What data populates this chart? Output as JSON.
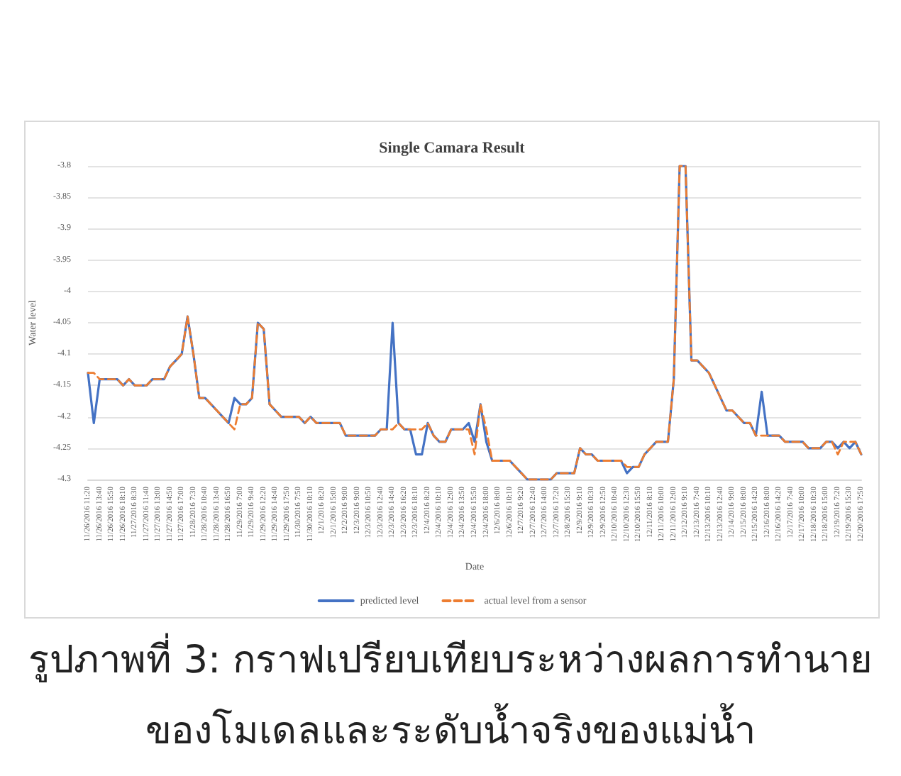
{
  "chart_data": {
    "type": "line",
    "title": "Single Camara Result",
    "xlabel": "Date",
    "ylabel": "Water level",
    "annotations": [
      "รูปภาพที่ 3: กราฟเปรียบเทียบระหว่างผลการทำนายของโมเดลและระดับน้ำจริงของแม่น้ำ"
    ],
    "categories": [
      "11/26/2016 11:20",
      null,
      "11/26/2016 13:40",
      null,
      "11/26/2016 15:50",
      null,
      "11/26/2016 18:10",
      null,
      "11/27/2016 8:30",
      null,
      "11/27/2016 11:40",
      null,
      "11/27/2016 13:00",
      null,
      "11/27/2016 14:50",
      null,
      "11/27/2016 17:00",
      null,
      "11/28/2016 7:30",
      null,
      "11/28/2016 10:40",
      null,
      "11/28/2016 13:40",
      null,
      "11/28/2016 16:50",
      null,
      "11/29/2016 7:00",
      null,
      "11/29/2016 9:40",
      null,
      "11/29/2016 12:20",
      null,
      "11/29/2016 14:40",
      null,
      "11/29/2016 17:50",
      null,
      "11/30/2016 7:50",
      null,
      "11/30/2016 10:10",
      null,
      "12/1/2016 8:20",
      null,
      "12/1/2016 15:00",
      null,
      "12/2/2016 9:00",
      null,
      "12/3/2016 9:00",
      null,
      "12/3/2016 10:50",
      null,
      "12/3/2016 12:40",
      null,
      "12/3/2016 14:40",
      null,
      "12/3/2016 16:20",
      null,
      "12/3/2016 18:10",
      null,
      "12/4/2016 8:20",
      null,
      "12/4/2016 10:10",
      null,
      "12/4/2016 12:00",
      null,
      "12/4/2016 13:50",
      null,
      "12/4/2016 15:50",
      null,
      "12/4/2016 18:00",
      null,
      "12/6/2016 8:00",
      null,
      "12/6/2016 10:10",
      null,
      "12/7/2016 9:20",
      null,
      "12/7/2016 12:40",
      null,
      "12/7/2016 14:00",
      null,
      "12/7/2016 17:20",
      null,
      "12/8/2016 15:30",
      null,
      "12/9/2016 9:10",
      null,
      "12/9/2016 10:30",
      null,
      "12/9/2016 12:50",
      null,
      "12/10/2016 10:40",
      null,
      "12/10/2016 12:30",
      null,
      "12/10/2016 15:50",
      null,
      "12/11/2016 8:10",
      null,
      "12/11/2016 10:00",
      null,
      "12/11/2016 12:00",
      null,
      "12/12/2016 9:10",
      null,
      "12/13/2016 7:40",
      null,
      "12/13/2016 10:10",
      null,
      "12/13/2016 12:40",
      null,
      "12/14/2016 9:00",
      null,
      "12/15/2016 8:00",
      null,
      "12/15/2016 14:20",
      null,
      "12/16/2016 8:00",
      null,
      "12/16/2016 14:20",
      null,
      "12/17/2016 7:40",
      null,
      "12/17/2016 10:00",
      null,
      "12/18/2016 10:30",
      null,
      "12/18/2016 15:00",
      null,
      "12/19/2016 7:20",
      null,
      "12/19/2016 15:30",
      null,
      "12/20/2016 17:50"
    ],
    "series": [
      {
        "name": "predicted level",
        "color": "#4472c4",
        "line_style": "solid",
        "values": [
          -4.13,
          -4.21,
          -4.14,
          -4.14,
          -4.14,
          -4.14,
          -4.15,
          -4.14,
          -4.15,
          -4.15,
          -4.15,
          -4.14,
          -4.14,
          -4.14,
          -4.12,
          -4.11,
          -4.1,
          -4.04,
          -4.1,
          -4.17,
          -4.17,
          -4.18,
          -4.19,
          -4.2,
          -4.21,
          -4.17,
          -4.18,
          -4.18,
          -4.17,
          -4.05,
          -4.06,
          -4.18,
          -4.19,
          -4.2,
          -4.2,
          -4.2,
          -4.2,
          -4.21,
          -4.2,
          -4.21,
          -4.21,
          -4.21,
          -4.21,
          -4.21,
          -4.23,
          -4.23,
          -4.23,
          -4.23,
          -4.23,
          -4.23,
          -4.22,
          -4.22,
          -4.05,
          -4.21,
          -4.22,
          -4.22,
          -4.26,
          -4.26,
          -4.21,
          -4.23,
          -4.24,
          -4.24,
          -4.22,
          -4.22,
          -4.22,
          -4.21,
          -4.24,
          -4.18,
          -4.24,
          -4.27,
          -4.27,
          -4.27,
          -4.27,
          -4.28,
          -4.29,
          -4.3,
          -4.3,
          -4.3,
          -4.3,
          -4.3,
          -4.29,
          -4.29,
          -4.29,
          -4.29,
          -4.25,
          -4.26,
          -4.26,
          -4.27,
          -4.27,
          -4.27,
          -4.27,
          -4.27,
          -4.29,
          -4.28,
          -4.28,
          -4.26,
          -4.25,
          -4.24,
          -4.24,
          -4.24,
          -4.14,
          -3.8,
          -3.8,
          -4.11,
          -4.11,
          -4.12,
          -4.13,
          -4.15,
          -4.17,
          -4.19,
          -4.19,
          -4.2,
          -4.21,
          -4.21,
          -4.23,
          -4.16,
          -4.23,
          -4.23,
          -4.23,
          -4.24,
          -4.24,
          -4.24,
          -4.24,
          -4.25,
          -4.25,
          -4.25,
          -4.24,
          -4.24,
          -4.25,
          -4.24,
          -4.25,
          -4.24,
          -4.26
        ]
      },
      {
        "name": "actual level from a sensor",
        "color": "#ed7d31",
        "line_style": "dashed",
        "values": [
          -4.13,
          -4.13,
          -4.14,
          -4.14,
          -4.14,
          -4.14,
          -4.15,
          -4.14,
          -4.15,
          -4.15,
          -4.15,
          -4.14,
          -4.14,
          -4.14,
          -4.12,
          -4.11,
          -4.1,
          -4.04,
          -4.1,
          -4.17,
          -4.17,
          -4.18,
          -4.19,
          -4.2,
          -4.21,
          -4.22,
          -4.18,
          -4.18,
          -4.17,
          -4.05,
          -4.06,
          -4.18,
          -4.19,
          -4.2,
          -4.2,
          -4.2,
          -4.2,
          -4.21,
          -4.2,
          -4.21,
          -4.21,
          -4.21,
          -4.21,
          -4.21,
          -4.23,
          -4.23,
          -4.23,
          -4.23,
          -4.23,
          -4.23,
          -4.22,
          -4.22,
          -4.22,
          -4.21,
          -4.22,
          -4.22,
          -4.22,
          -4.22,
          -4.21,
          -4.23,
          -4.24,
          -4.24,
          -4.22,
          -4.22,
          -4.22,
          -4.22,
          -4.26,
          -4.18,
          -4.22,
          -4.27,
          -4.27,
          -4.27,
          -4.27,
          -4.28,
          -4.29,
          -4.3,
          -4.3,
          -4.3,
          -4.3,
          -4.3,
          -4.29,
          -4.29,
          -4.29,
          -4.29,
          -4.25,
          -4.26,
          -4.26,
          -4.27,
          -4.27,
          -4.27,
          -4.27,
          -4.27,
          -4.28,
          -4.28,
          -4.28,
          -4.26,
          -4.25,
          -4.24,
          -4.24,
          -4.24,
          -4.14,
          -3.8,
          -3.8,
          -4.11,
          -4.11,
          -4.12,
          -4.13,
          -4.15,
          -4.17,
          -4.19,
          -4.19,
          -4.2,
          -4.21,
          -4.21,
          -4.23,
          -4.23,
          -4.23,
          -4.23,
          -4.23,
          -4.24,
          -4.24,
          -4.24,
          -4.24,
          -4.25,
          -4.25,
          -4.25,
          -4.24,
          -4.24,
          -4.26,
          -4.24,
          -4.24,
          -4.24,
          -4.26
        ]
      }
    ],
    "ylim": [
      -4.3,
      -3.8
    ],
    "yticks": [
      -4.3,
      -4.25,
      -4.2,
      -4.15,
      -4.1,
      -4.05,
      -4,
      -3.95,
      -3.9,
      -3.85,
      -3.8
    ],
    "grid": "y",
    "legend": "bottom",
    "marker": "none"
  }
}
